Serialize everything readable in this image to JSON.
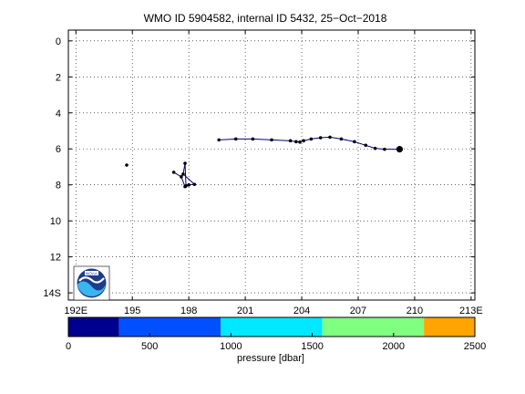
{
  "chart_data": {
    "type": "scatter",
    "title": "WMO ID 5904582, internal ID 5432, 25−Oct−2018",
    "x_ticks": [
      {
        "value": 192,
        "label": "192E"
      },
      {
        "value": 195,
        "label": "195"
      },
      {
        "value": 198,
        "label": "198"
      },
      {
        "value": 201,
        "label": "201"
      },
      {
        "value": 204,
        "label": "204"
      },
      {
        "value": 207,
        "label": "207"
      },
      {
        "value": 210,
        "label": "210"
      },
      {
        "value": 213,
        "label": "213E"
      }
    ],
    "y_ticks": [
      {
        "value": 0,
        "label": "0"
      },
      {
        "value": 2,
        "label": "2"
      },
      {
        "value": 4,
        "label": "4"
      },
      {
        "value": 6,
        "label": "6"
      },
      {
        "value": 8,
        "label": "8"
      },
      {
        "value": 10,
        "label": "10"
      },
      {
        "value": 12,
        "label": "12"
      },
      {
        "value": 14,
        "label": "14S"
      }
    ],
    "xlim": [
      191.6,
      213.2
    ],
    "ylim": [
      -0.6,
      14.4
    ],
    "grid": true,
    "series": [
      {
        "color": "#000080",
        "points": [
          [
            194.7,
            6.9
          ],
          [
            199.6,
            5.5
          ],
          [
            200.5,
            5.45
          ],
          [
            201.4,
            5.45
          ],
          [
            202.4,
            5.5
          ],
          [
            203.4,
            5.55
          ],
          [
            203.7,
            5.6
          ],
          [
            203.9,
            5.62
          ],
          [
            204.1,
            5.55
          ],
          [
            204.5,
            5.45
          ],
          [
            205.0,
            5.38
          ],
          [
            205.5,
            5.35
          ],
          [
            206.1,
            5.45
          ],
          [
            206.8,
            5.6
          ],
          [
            207.4,
            5.8
          ],
          [
            207.9,
            5.97
          ],
          [
            208.4,
            6.02
          ],
          [
            209.2,
            6.02
          ]
        ]
      }
    ],
    "cluster_paths": [
      [
        [
          197.2,
          7.3
        ],
        [
          197.6,
          7.55
        ],
        [
          197.8,
          8.1
        ],
        [
          198.0,
          8.0
        ],
        [
          198.3,
          7.97
        ],
        [
          197.7,
          7.4
        ],
        [
          197.8,
          6.8
        ],
        [
          197.85,
          8.05
        ]
      ]
    ],
    "last_position": [
      209.2,
      6.02
    ],
    "logo": "noaa-logo",
    "colorbar": {
      "label": "pressure [dbar]",
      "ticks": [
        {
          "value": 0,
          "label": "0"
        },
        {
          "value": 500,
          "label": "500"
        },
        {
          "value": 1000,
          "label": "1000"
        },
        {
          "value": 1500,
          "label": "1500"
        },
        {
          "value": 2000,
          "label": "2000"
        },
        {
          "value": 2500,
          "label": "2500"
        }
      ],
      "range": [
        0,
        2500
      ],
      "bands": [
        {
          "from": 0,
          "to": 312,
          "color": "#00008f"
        },
        {
          "from": 312,
          "to": 937,
          "color": "#0050ff"
        },
        {
          "from": 937,
          "to": 1562,
          "color": "#00e8ff"
        },
        {
          "from": 1562,
          "to": 2187,
          "color": "#80ff80"
        },
        {
          "from": 2187,
          "to": 2500,
          "color": "#ffa400"
        }
      ]
    }
  }
}
